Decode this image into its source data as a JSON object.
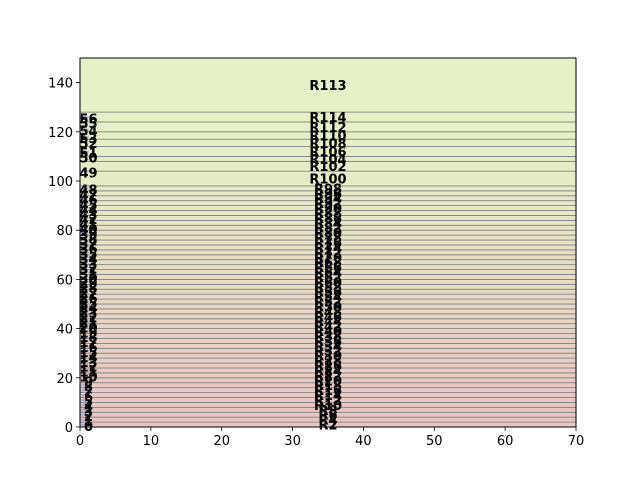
{
  "chart_data": {
    "type": "bar",
    "title": "",
    "xlabel": "",
    "ylabel": "",
    "xlim": [
      0,
      70
    ],
    "ylim": [
      0,
      150
    ],
    "xticks": [
      0,
      10,
      20,
      30,
      40,
      50,
      60,
      70
    ],
    "yticks": [
      0,
      20,
      40,
      60,
      80,
      100,
      120,
      140
    ],
    "grid": false,
    "colors": {
      "bottom": "#e8c4c4",
      "top": "#e6f2c6",
      "band_line": "#808080",
      "bar": "#a9a9d6"
    },
    "bands": [
      {
        "label": "R2",
        "y": [
          0,
          2
        ]
      },
      {
        "label": "R4",
        "y": [
          2,
          4
        ]
      },
      {
        "label": "R6",
        "y": [
          4,
          6
        ]
      },
      {
        "label": "R8",
        "y": [
          6,
          8
        ]
      },
      {
        "label": "R10",
        "y": [
          8,
          10
        ]
      },
      {
        "label": "R12",
        "y": [
          10,
          12
        ]
      },
      {
        "label": "R14",
        "y": [
          12,
          14
        ]
      },
      {
        "label": "R16",
        "y": [
          14,
          16
        ]
      },
      {
        "label": "R18",
        "y": [
          16,
          18
        ]
      },
      {
        "label": "R20",
        "y": [
          18,
          20
        ]
      },
      {
        "label": "R22",
        "y": [
          20,
          22
        ]
      },
      {
        "label": "R24",
        "y": [
          22,
          24
        ]
      },
      {
        "label": "R26",
        "y": [
          24,
          26
        ]
      },
      {
        "label": "R28",
        "y": [
          26,
          28
        ]
      },
      {
        "label": "R30",
        "y": [
          28,
          30
        ]
      },
      {
        "label": "R32",
        "y": [
          30,
          32
        ]
      },
      {
        "label": "R34",
        "y": [
          32,
          34
        ]
      },
      {
        "label": "R36",
        "y": [
          34,
          36
        ]
      },
      {
        "label": "R38",
        "y": [
          36,
          38
        ]
      },
      {
        "label": "R40",
        "y": [
          38,
          40
        ]
      },
      {
        "label": "R42",
        "y": [
          40,
          42
        ]
      },
      {
        "label": "R44",
        "y": [
          42,
          44
        ]
      },
      {
        "label": "R46",
        "y": [
          44,
          46
        ]
      },
      {
        "label": "R48",
        "y": [
          46,
          48
        ]
      },
      {
        "label": "R50",
        "y": [
          48,
          50
        ]
      },
      {
        "label": "R52",
        "y": [
          50,
          52
        ]
      },
      {
        "label": "R54",
        "y": [
          52,
          54
        ]
      },
      {
        "label": "R56",
        "y": [
          54,
          56
        ]
      },
      {
        "label": "R58",
        "y": [
          56,
          58
        ]
      },
      {
        "label": "R60",
        "y": [
          58,
          60
        ]
      },
      {
        "label": "R62",
        "y": [
          60,
          62
        ]
      },
      {
        "label": "R64",
        "y": [
          62,
          64
        ]
      },
      {
        "label": "R66",
        "y": [
          64,
          66
        ]
      },
      {
        "label": "R68",
        "y": [
          66,
          68
        ]
      },
      {
        "label": "R70",
        "y": [
          68,
          70
        ]
      },
      {
        "label": "R72",
        "y": [
          70,
          72
        ]
      },
      {
        "label": "R74",
        "y": [
          72,
          74
        ]
      },
      {
        "label": "R76",
        "y": [
          74,
          76
        ]
      },
      {
        "label": "R78",
        "y": [
          76,
          78
        ]
      },
      {
        "label": "R80",
        "y": [
          78,
          80
        ]
      },
      {
        "label": "R82",
        "y": [
          80,
          82
        ]
      },
      {
        "label": "R84",
        "y": [
          82,
          84
        ]
      },
      {
        "label": "R86",
        "y": [
          84,
          86
        ]
      },
      {
        "label": "R88",
        "y": [
          86,
          88
        ]
      },
      {
        "label": "R90",
        "y": [
          88,
          90
        ]
      },
      {
        "label": "R92",
        "y": [
          90,
          92
        ]
      },
      {
        "label": "R94",
        "y": [
          92,
          94
        ]
      },
      {
        "label": "R96",
        "y": [
          94,
          96
        ]
      },
      {
        "label": "R98",
        "y": [
          96,
          98
        ]
      },
      {
        "label": "R100",
        "y": [
          98,
          104
        ]
      },
      {
        "label": "R102",
        "y": [
          104,
          108
        ]
      },
      {
        "label": "R104",
        "y": [
          108,
          110
        ]
      },
      {
        "label": "R106",
        "y": [
          110,
          114
        ]
      },
      {
        "label": "R108",
        "y": [
          114,
          117
        ]
      },
      {
        "label": "R110",
        "y": [
          117,
          120
        ]
      },
      {
        "label": "R112",
        "y": [
          120,
          124
        ]
      },
      {
        "label": "R114",
        "y": [
          124,
          128
        ]
      },
      {
        "label": "R113",
        "y": [
          128,
          150
        ]
      }
    ],
    "points": [
      {
        "label": "0",
        "x": 1.2,
        "y": 0.5
      },
      {
        "label": "1",
        "x": 1.2,
        "y": 2.5
      },
      {
        "label": "2",
        "x": 1.2,
        "y": 4.5
      },
      {
        "label": "3",
        "x": 1.2,
        "y": 6.5
      },
      {
        "label": "4",
        "x": 1.2,
        "y": 8.5
      },
      {
        "label": "5",
        "x": 1.2,
        "y": 10.5
      },
      {
        "label": "6",
        "x": 1.2,
        "y": 12.5
      },
      {
        "label": "7",
        "x": 1.2,
        "y": 14.5
      },
      {
        "label": "8",
        "x": 1.2,
        "y": 16.5
      },
      {
        "label": "9",
        "x": 1.2,
        "y": 18.5
      },
      {
        "label": "10",
        "x": 1.2,
        "y": 20.5
      },
      {
        "label": "11",
        "x": 1.2,
        "y": 22.5
      },
      {
        "label": "12",
        "x": 1.2,
        "y": 24.5
      },
      {
        "label": "13",
        "x": 1.2,
        "y": 26.5
      },
      {
        "label": "14",
        "x": 1.2,
        "y": 28.5
      },
      {
        "label": "15",
        "x": 1.2,
        "y": 30.5
      },
      {
        "label": "16",
        "x": 1.2,
        "y": 32.5
      },
      {
        "label": "17",
        "x": 1.2,
        "y": 34.5
      },
      {
        "label": "18",
        "x": 1.2,
        "y": 36.5
      },
      {
        "label": "19",
        "x": 1.2,
        "y": 38.5
      },
      {
        "label": "20",
        "x": 1.2,
        "y": 40.5
      },
      {
        "label": "21",
        "x": 1.2,
        "y": 42.5
      },
      {
        "label": "22",
        "x": 1.2,
        "y": 44.5
      },
      {
        "label": "23",
        "x": 1.2,
        "y": 46.5
      },
      {
        "label": "24",
        "x": 1.2,
        "y": 48.5
      },
      {
        "label": "25",
        "x": 1.2,
        "y": 50.5
      },
      {
        "label": "26",
        "x": 1.2,
        "y": 52.5
      },
      {
        "label": "27",
        "x": 1.2,
        "y": 54.5
      },
      {
        "label": "28",
        "x": 1.2,
        "y": 56.5
      },
      {
        "label": "29",
        "x": 1.2,
        "y": 58.5
      },
      {
        "label": "30",
        "x": 1.2,
        "y": 60.5
      },
      {
        "label": "31",
        "x": 1.2,
        "y": 62.5
      },
      {
        "label": "32",
        "x": 1.2,
        "y": 64.5
      },
      {
        "label": "33",
        "x": 1.2,
        "y": 66.5
      },
      {
        "label": "34",
        "x": 1.2,
        "y": 68.5
      },
      {
        "label": "35",
        "x": 1.2,
        "y": 70.5
      },
      {
        "label": "36",
        "x": 1.2,
        "y": 72.5
      },
      {
        "label": "37",
        "x": 1.2,
        "y": 74.5
      },
      {
        "label": "38",
        "x": 1.2,
        "y": 76.5
      },
      {
        "label": "39",
        "x": 1.2,
        "y": 78.5
      },
      {
        "label": "40",
        "x": 1.2,
        "y": 80.5
      },
      {
        "label": "41",
        "x": 1.2,
        "y": 82.5
      },
      {
        "label": "42",
        "x": 1.2,
        "y": 84.5
      },
      {
        "label": "43",
        "x": 1.2,
        "y": 86.5
      },
      {
        "label": "44",
        "x": 1.2,
        "y": 88.5
      },
      {
        "label": "45",
        "x": 1.2,
        "y": 90.5
      },
      {
        "label": "46",
        "x": 1.2,
        "y": 92.5
      },
      {
        "label": "47",
        "x": 1.2,
        "y": 94.5
      },
      {
        "label": "48",
        "x": 1.2,
        "y": 96.5
      },
      {
        "label": "49",
        "x": 1.2,
        "y": 103.5
      },
      {
        "label": "50",
        "x": 1.2,
        "y": 109.5
      },
      {
        "label": "51",
        "x": 1.2,
        "y": 111.5
      },
      {
        "label": "52",
        "x": 1.2,
        "y": 115.5
      },
      {
        "label": "53",
        "x": 1.2,
        "y": 117.5
      },
      {
        "label": "54",
        "x": 1.2,
        "y": 120.5
      },
      {
        "label": "55",
        "x": 1.2,
        "y": 123.5
      },
      {
        "label": "56",
        "x": 1.2,
        "y": 125.5
      }
    ]
  }
}
